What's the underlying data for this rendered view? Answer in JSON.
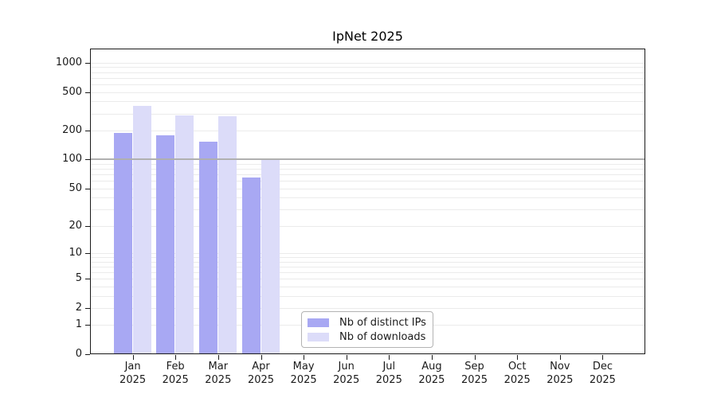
{
  "title": "IpNet 2025",
  "chart_data": {
    "type": "bar",
    "title": "IpNet 2025",
    "categories": [
      "Jan",
      "Feb",
      "Mar",
      "Apr",
      "May",
      "Jun",
      "Jul",
      "Aug",
      "Sep",
      "Oct",
      "Nov",
      "Dec"
    ],
    "year": "2025",
    "series": [
      {
        "name": "Nb of distinct IPs",
        "color": "#a8a8f3",
        "values": [
          190,
          180,
          152,
          65,
          null,
          null,
          null,
          null,
          null,
          null,
          null,
          null
        ]
      },
      {
        "name": "Nb of downloads",
        "color": "#dcdcf9",
        "values": [
          360,
          285,
          280,
          100,
          null,
          null,
          null,
          null,
          null,
          null,
          null,
          null
        ]
      }
    ],
    "xlabel": "",
    "ylabel": "",
    "y_scale": "symlog-log1p",
    "ylim": [
      0,
      1400
    ],
    "y_ticks": [
      0,
      1,
      2,
      5,
      10,
      20,
      50,
      100,
      200,
      500,
      1000
    ],
    "grid_minor_values": [
      1,
      2,
      3,
      4,
      5,
      6,
      7,
      8,
      9,
      10,
      20,
      30,
      40,
      50,
      60,
      70,
      80,
      90,
      200,
      300,
      400,
      500,
      600,
      700,
      800,
      900,
      1000
    ],
    "reference_line_value": 100,
    "grid": "horizontal only",
    "legend_position": "lower center inside plot"
  },
  "legend": {
    "items": [
      {
        "label": "Nb of distinct IPs",
        "color": "#a8a8f3"
      },
      {
        "label": "Nb of downloads",
        "color": "#dcdcf9"
      }
    ]
  },
  "colors": {
    "bar_dark": "#a8a8f3",
    "bar_light": "#dcdcf9",
    "gridline": "#ebebeb",
    "reference_line": "#b0b0b0",
    "axis": "#1a1a1a",
    "background": "#ffffff",
    "legend_border": "#b3b3b3"
  }
}
